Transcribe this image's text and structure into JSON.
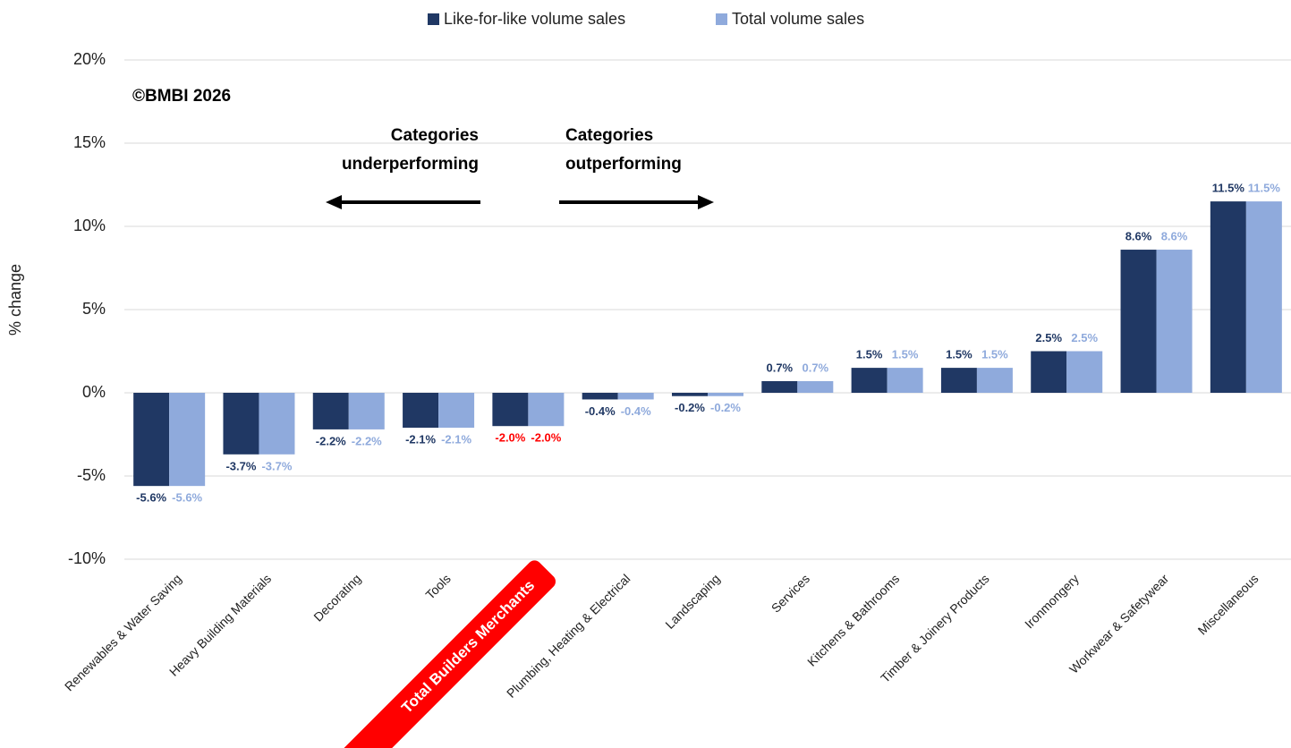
{
  "chart_data": {
    "type": "bar",
    "y_label": "% change",
    "categories": [
      "Renewables & Water Saving",
      "Heavy Building Materials",
      "Decorating",
      "Tools",
      "Total Builders Merchants",
      "Plumbing, Heating & Electrical",
      "Landscaping",
      "Services",
      "Kitchens & Bathrooms",
      "Timber & Joinery Products",
      "Ironmongery",
      "Workwear & Safetywear",
      "Miscellaneous"
    ],
    "series": [
      {
        "name": "Like-for-like volume sales",
        "color": "#203864",
        "values": [
          -5.6,
          -3.7,
          -2.2,
          -2.1,
          -2.0,
          -0.4,
          -0.2,
          0.7,
          1.5,
          1.5,
          2.5,
          8.6,
          11.5
        ],
        "value_labels": [
          "-5.6%",
          "-3.7%",
          "-2.2%",
          "-2.1%",
          "-2.0%",
          "-0.4%",
          "-0.2%",
          "0.7%",
          "1.5%",
          "1.5%",
          "2.5%",
          "8.6%",
          "11.5%"
        ]
      },
      {
        "name": "Total volume sales",
        "color": "#8faadc",
        "values": [
          -5.6,
          -3.7,
          -2.2,
          -2.1,
          -2.0,
          -0.4,
          -0.2,
          0.7,
          1.5,
          1.5,
          2.5,
          8.6,
          11.5
        ],
        "value_labels": [
          "-5.6%",
          "-3.7%",
          "-2.2%",
          "-2.1%",
          "-2.0%",
          "-0.4%",
          "-0.2%",
          "0.7%",
          "1.5%",
          "1.5%",
          "2.5%",
          "8.6%",
          "11.5%"
        ]
      }
    ],
    "highlight_index": 4,
    "highlight_color": "#ff0000",
    "ylim": [
      -10,
      20
    ],
    "yticks": [
      {
        "value": -10,
        "label": "-10%"
      },
      {
        "value": -5,
        "label": "-5%"
      },
      {
        "value": 0,
        "label": "0%"
      },
      {
        "value": 5,
        "label": "5%"
      },
      {
        "value": 10,
        "label": "10%"
      },
      {
        "value": 15,
        "label": "15%"
      },
      {
        "value": 20,
        "label": "20%"
      }
    ],
    "grid": true,
    "legend": "top",
    "annotations": [
      {
        "lines": [
          "©BMBI 2026"
        ]
      },
      {
        "lines": [
          "Categories",
          "underperforming"
        ]
      },
      {
        "lines": [
          "Categories",
          "outperforming"
        ]
      }
    ]
  }
}
